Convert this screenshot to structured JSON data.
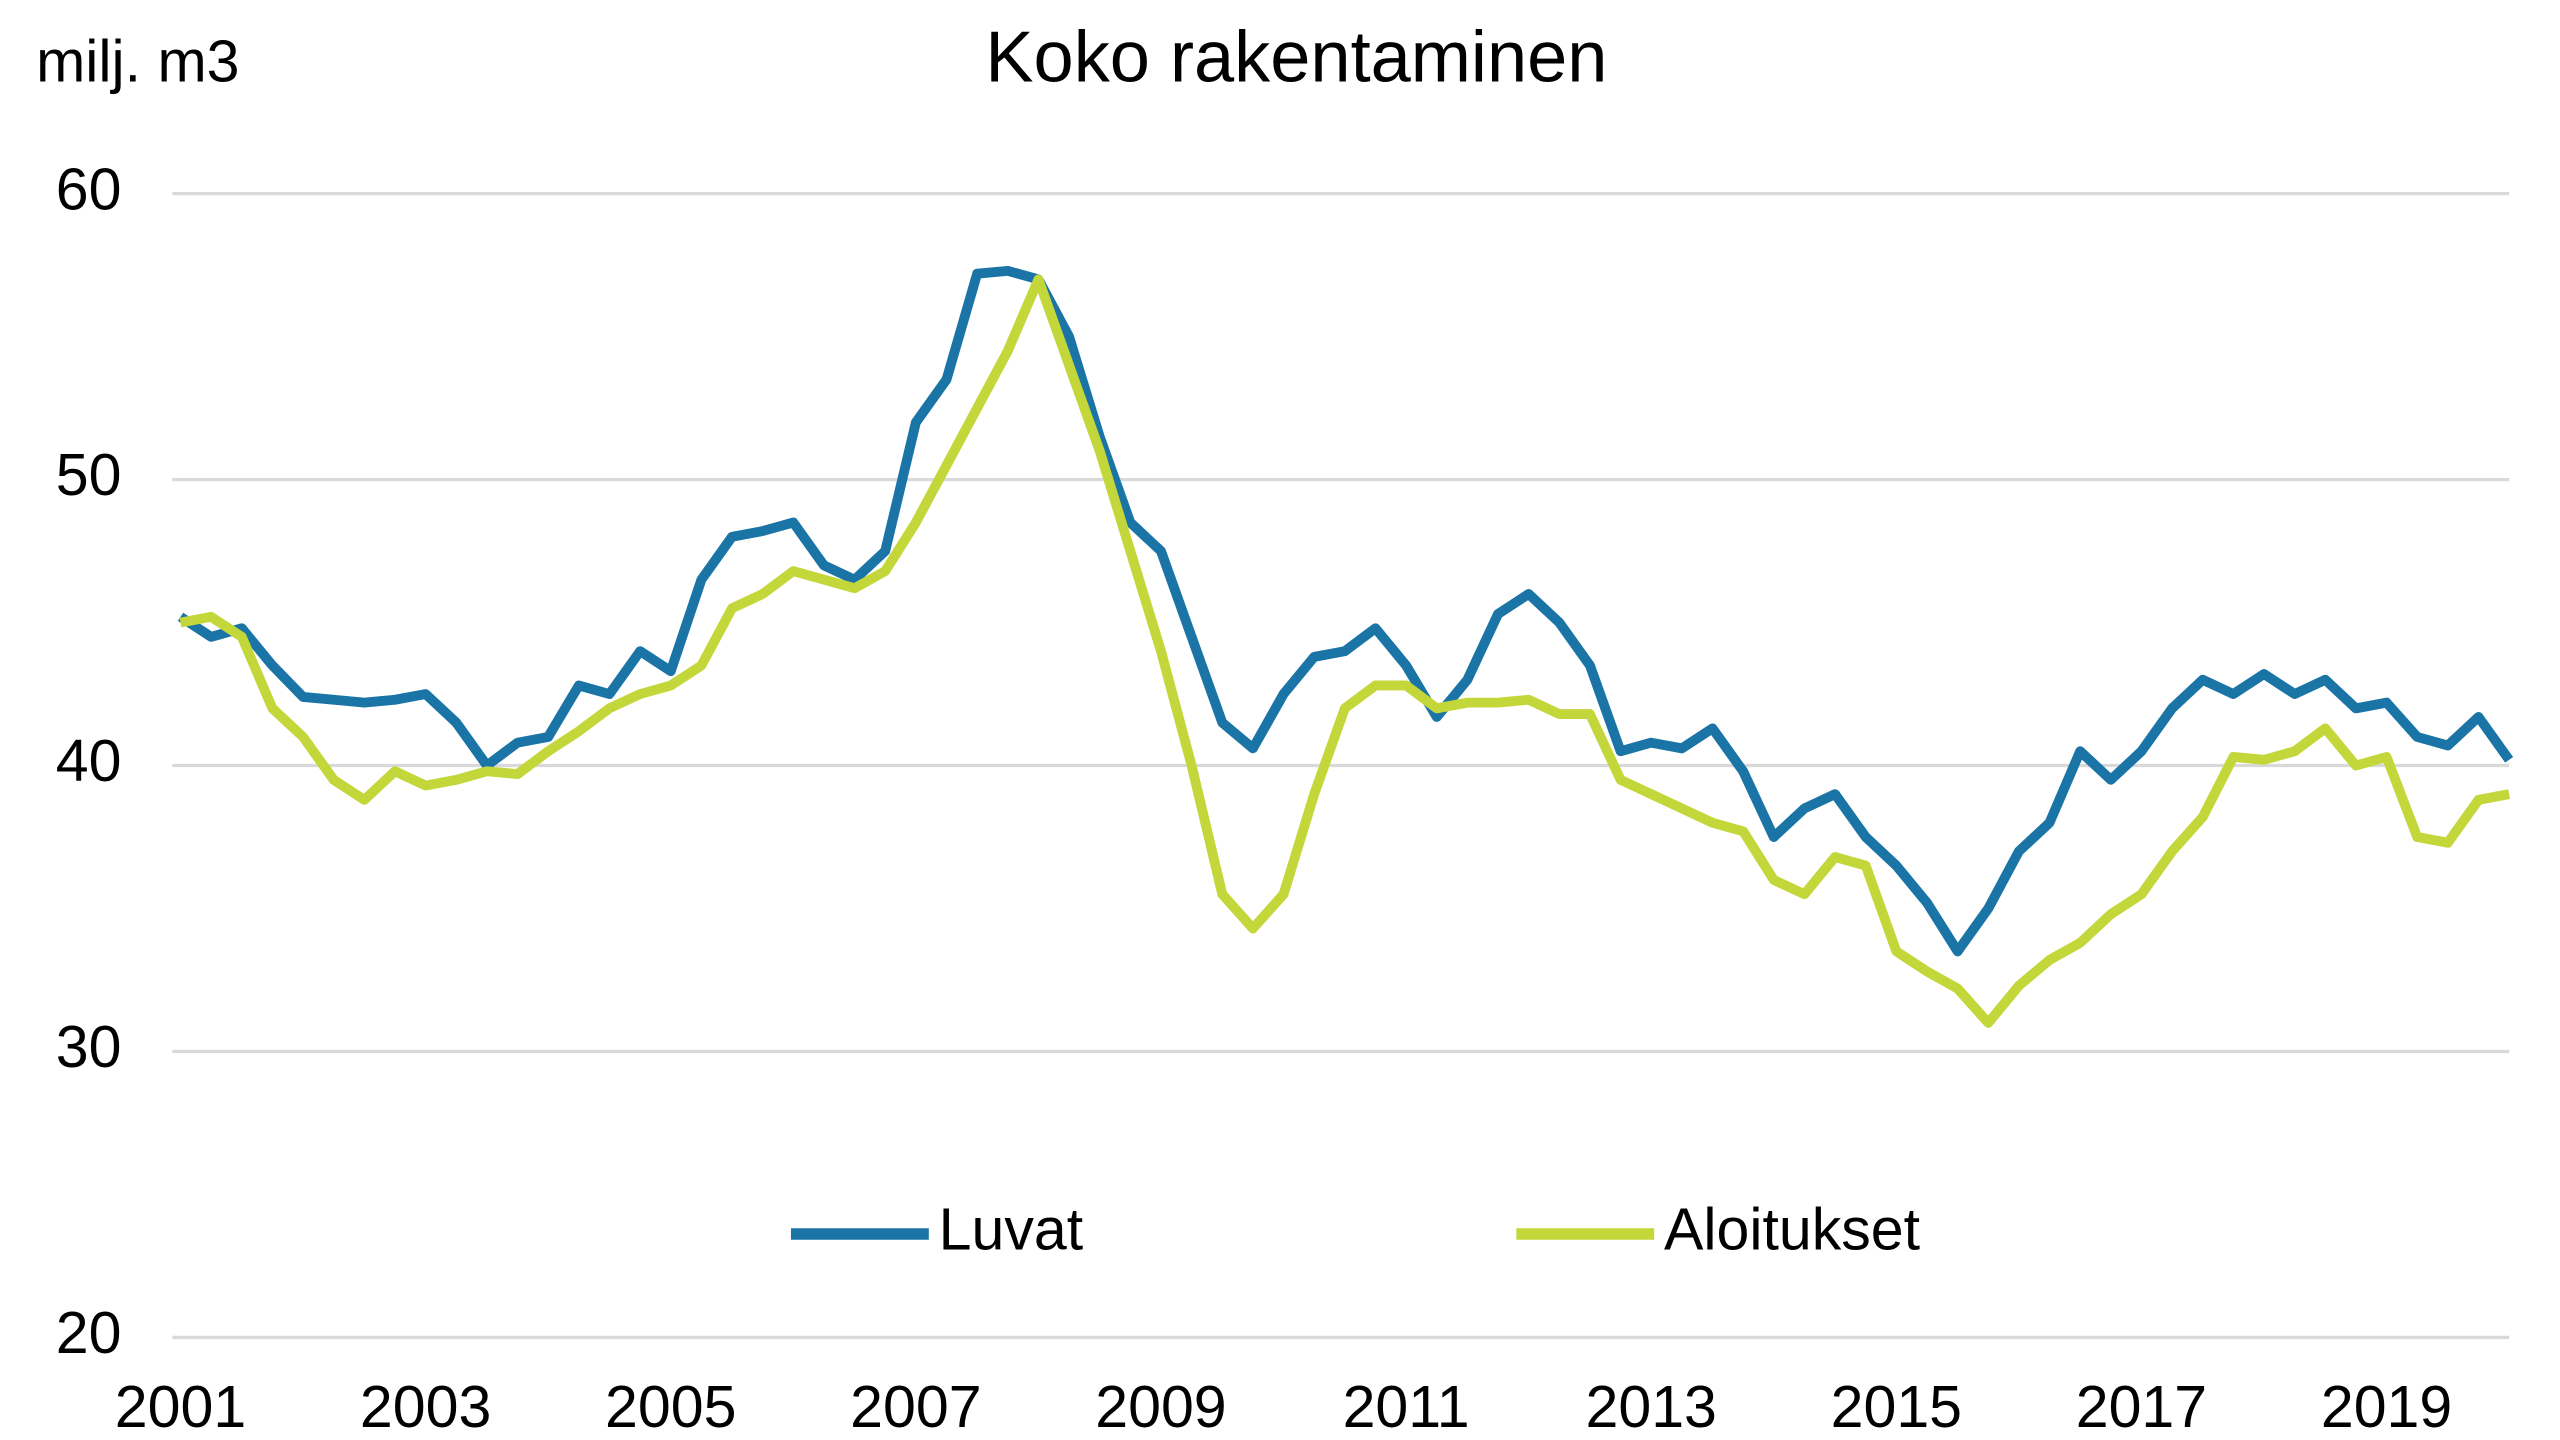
{
  "chart_data": {
    "type": "line",
    "title": "Koko rakentaminen",
    "y_label": "milj. m3",
    "x": [
      2001,
      2001.25,
      2001.5,
      2001.75,
      2002,
      2002.25,
      2002.5,
      2002.75,
      2003,
      2003.25,
      2003.5,
      2003.75,
      2004,
      2004.25,
      2004.5,
      2004.75,
      2005,
      2005.25,
      2005.5,
      2005.75,
      2006,
      2006.25,
      2006.5,
      2006.75,
      2007,
      2007.25,
      2007.5,
      2007.75,
      2008,
      2008.25,
      2008.5,
      2008.75,
      2009,
      2009.25,
      2009.5,
      2009.75,
      2010,
      2010.25,
      2010.5,
      2010.75,
      2011,
      2011.25,
      2011.5,
      2011.75,
      2012,
      2012.25,
      2012.5,
      2012.75,
      2013,
      2013.25,
      2013.5,
      2013.75,
      2014,
      2014.25,
      2014.5,
      2014.75,
      2015,
      2015.25,
      2015.5,
      2015.75,
      2016,
      2016.25,
      2016.5,
      2016.75,
      2017,
      2017.25,
      2017.5,
      2017.75,
      2018,
      2018.25,
      2018.5,
      2018.75,
      2019,
      2019.25,
      2019.5,
      2019.75,
      2020
    ],
    "series": [
      {
        "name": "Luvat",
        "color": "#1a74a6",
        "values": [
          45.2,
          44.5,
          44.8,
          43.5,
          42.4,
          42.3,
          42.2,
          42.3,
          42.5,
          41.5,
          40.0,
          40.8,
          41.0,
          42.8,
          42.5,
          44.0,
          43.3,
          46.5,
          48.0,
          48.2,
          48.5,
          47.0,
          46.5,
          47.5,
          52.0,
          53.5,
          57.2,
          57.3,
          57.0,
          55.0,
          51.5,
          48.5,
          47.5,
          44.5,
          41.5,
          40.6,
          42.5,
          43.8,
          44.0,
          44.8,
          43.5,
          41.7,
          43.0,
          45.3,
          46.0,
          45.0,
          43.5,
          40.5,
          40.8,
          40.6,
          41.3,
          39.8,
          37.5,
          38.5,
          39.0,
          37.5,
          36.5,
          35.2,
          33.5,
          35.0,
          37.0,
          38.0,
          40.5,
          39.5,
          40.5,
          42.0,
          43.0,
          42.5,
          43.2,
          42.5,
          43.0,
          42.0,
          42.2,
          41.0,
          40.7,
          41.7,
          40.2
        ]
      },
      {
        "name": "Aloitukset",
        "color": "#c4d73a",
        "values": [
          45.0,
          45.2,
          44.5,
          42.0,
          41.0,
          39.5,
          38.8,
          39.8,
          39.3,
          39.5,
          39.8,
          39.7,
          40.5,
          41.2,
          42.0,
          42.5,
          42.8,
          43.5,
          45.5,
          46.0,
          46.8,
          46.5,
          46.2,
          46.8,
          48.5,
          50.5,
          52.5,
          54.5,
          57.0,
          54.0,
          51.0,
          47.5,
          44.0,
          40.0,
          35.5,
          34.3,
          35.5,
          39.0,
          42.0,
          42.8,
          42.8,
          42.0,
          42.2,
          42.2,
          42.3,
          41.8,
          41.8,
          39.5,
          39.0,
          38.5,
          38.0,
          37.7,
          36.0,
          35.5,
          36.8,
          36.5,
          33.5,
          32.8,
          32.2,
          31.0,
          32.3,
          33.2,
          33.8,
          34.8,
          35.5,
          37.0,
          38.2,
          40.3,
          40.2,
          40.5,
          41.3,
          40.0,
          40.3,
          37.5,
          37.3,
          38.8,
          39.0
        ]
      }
    ],
    "xlim": [
      2001,
      2020
    ],
    "xticks": [
      2001,
      2003,
      2005,
      2007,
      2009,
      2011,
      2013,
      2015,
      2017,
      2019
    ],
    "ylim": [
      20,
      60
    ],
    "yticks": [
      20,
      30,
      40,
      50,
      60
    ],
    "grid": true,
    "legend": "bottom"
  }
}
